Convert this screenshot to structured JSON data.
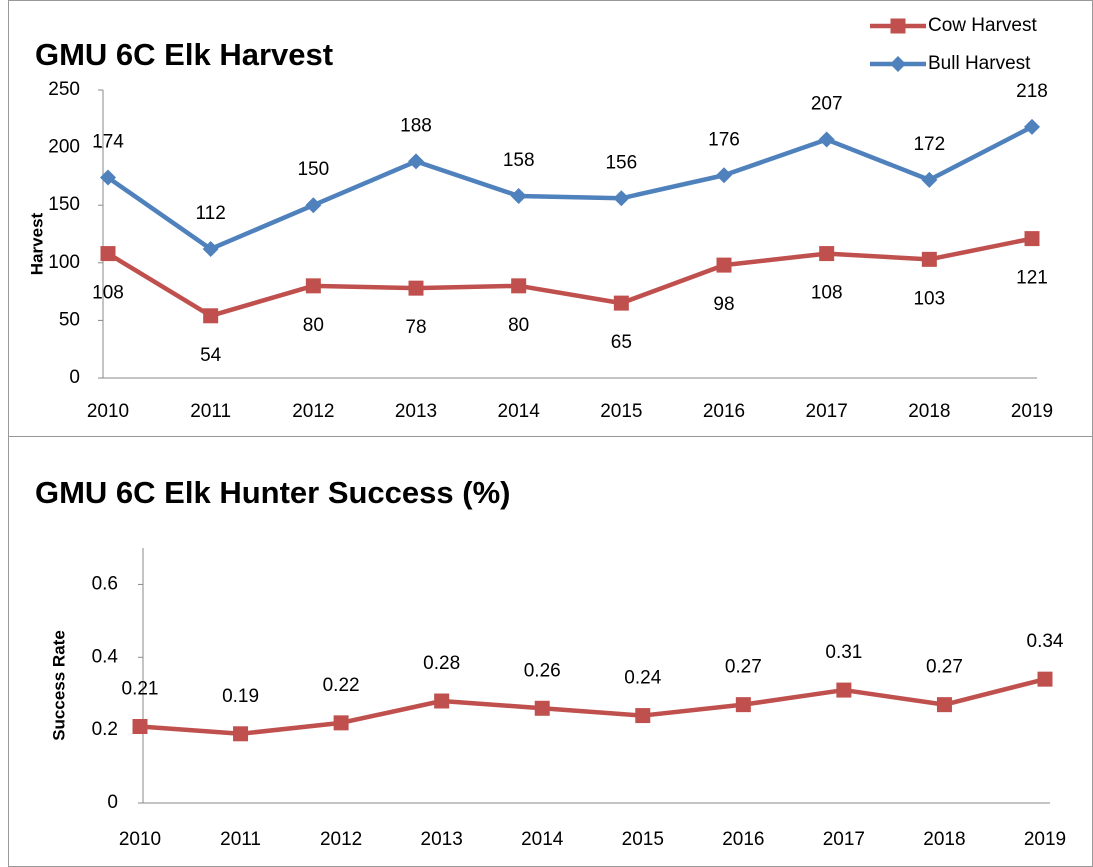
{
  "chart_data": [
    {
      "type": "line",
      "title": "GMU 6C Elk Harvest",
      "y_label": "Harvest",
      "categories": [
        "2010",
        "2011",
        "2012",
        "2013",
        "2014",
        "2015",
        "2016",
        "2017",
        "2018",
        "2019"
      ],
      "series": [
        {
          "name": "Cow Harvest",
          "color": "#c0504d",
          "marker": "square",
          "values": [
            108,
            54,
            80,
            78,
            80,
            65,
            98,
            108,
            103,
            121
          ]
        },
        {
          "name": "Bull Harvest",
          "color": "#4f81bd",
          "marker": "diamond",
          "values": [
            174,
            112,
            150,
            188,
            158,
            156,
            176,
            207,
            172,
            218
          ]
        }
      ],
      "ylim": [
        0,
        250
      ],
      "yticks": [
        0,
        50,
        100,
        150,
        200,
        250
      ],
      "legend": "top-right"
    },
    {
      "type": "line",
      "title": "GMU 6C Elk Hunter Success (%)",
      "y_label": "Success Rate",
      "categories": [
        "2010",
        "2011",
        "2012",
        "2013",
        "2014",
        "2015",
        "2016",
        "2017",
        "2018",
        "2019"
      ],
      "series": [
        {
          "color": "#c0504d",
          "marker": "square",
          "values": [
            0.21,
            0.19,
            0.22,
            0.28,
            0.26,
            0.24,
            0.27,
            0.31,
            0.27,
            0.34
          ]
        }
      ],
      "ylim": [
        0,
        0.7
      ],
      "yticks": [
        0,
        0.2,
        0.4,
        0.6
      ]
    }
  ]
}
